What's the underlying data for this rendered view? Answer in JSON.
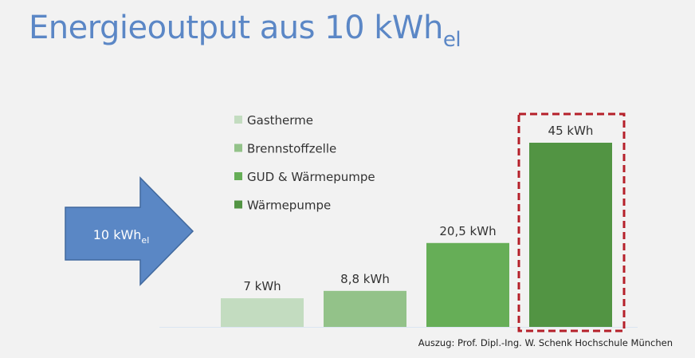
{
  "title": {
    "main": "Energieoutput aus 10 kWh",
    "sub": "el"
  },
  "input_arrow": {
    "label": "10 kWh",
    "label_sub": "el",
    "color": "#5a87c5"
  },
  "source": "Auszug: Prof. Dipl.-Ing. W. Schenk Hochschule München",
  "chart_data": {
    "type": "bar",
    "categories": [
      "Gastherme",
      "Brennstoffzelle",
      "GUD & Wärmepumpe",
      "Wärmepumpe"
    ],
    "values": [
      7,
      8.8,
      20.5,
      45
    ],
    "data_labels": [
      "7 kWh",
      "8,8 kWh",
      "20,5 kWh",
      "45 kWh"
    ],
    "colors": [
      "#c3dcc0",
      "#93c289",
      "#66ae57",
      "#529443"
    ],
    "legend": [
      "Gastherme",
      "Brennstoffzelle",
      "GUD & Wärmepumpe",
      "Wärmepumpe"
    ],
    "legend_placement": "top-left",
    "highlight": {
      "category": "Wärmepumpe",
      "color": "#b5202a",
      "style": "dashed"
    },
    "grid": false,
    "axes_visible": false
  }
}
